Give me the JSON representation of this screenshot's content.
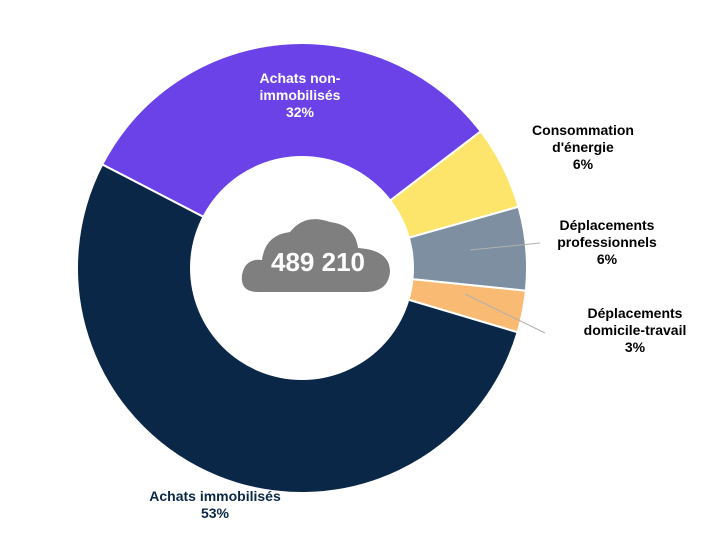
{
  "chart_data": {
    "type": "donut",
    "center_label": "489 210",
    "categories": [
      "Achats non-immobilisés",
      "Consommation d'énergie",
      "Déplacements professionnels",
      "Déplacements domicile-travail",
      "Achats immobilisés"
    ],
    "values": [
      32,
      6,
      6,
      3,
      53
    ],
    "value_labels": [
      "32%",
      "6%",
      "6%",
      "3%",
      "53%"
    ],
    "colors": [
      "#6a42e8",
      "#fde46b",
      "#7d8fa0",
      "#f9bb73",
      "#0a2747"
    ]
  }
}
